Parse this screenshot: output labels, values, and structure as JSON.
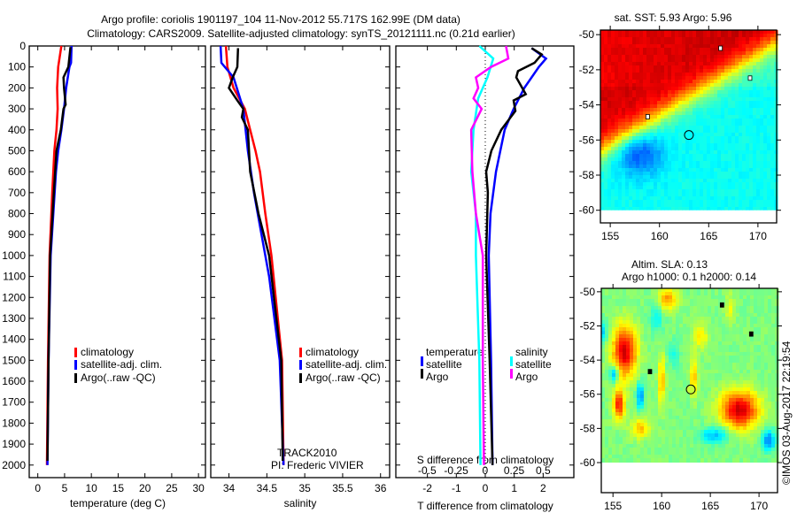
{
  "title_line1": "Argo profile: coriolis 1901197_104 11-Nov-2012 55.717S 162.99E (DM data)",
  "title_line2": "Climatology: CARS2009. Satellite-adjusted climatology: synTS_20121111.nc (0.21d earlier)",
  "colors": {
    "climatology": "#ff0000",
    "satellite": "#0000ff",
    "argo": "#000000",
    "sal_satellite": "#00ffff",
    "sal_argo": "#ff00ff"
  },
  "chart_data": [
    {
      "type": "line",
      "xlabel": "temperature (deg C)",
      "ylabel": "",
      "xlim": [
        -1.6,
        31.3
      ],
      "ylim": [
        0,
        2060
      ],
      "y_reversed": true,
      "xticks": [
        0,
        5,
        10,
        15,
        20,
        25,
        30
      ],
      "yticks": [
        0,
        100,
        200,
        300,
        400,
        500,
        600,
        700,
        800,
        900,
        1000,
        1100,
        1200,
        1300,
        1400,
        1500,
        1600,
        1700,
        1800,
        1900,
        2000
      ],
      "legend": [
        "climatology",
        "satellite-adj. clim.",
        "Argo(..raw -QC)"
      ],
      "series": [
        {
          "name": "climatology",
          "color_key": "climatology",
          "depth": [
            0,
            100,
            200,
            300,
            400,
            500,
            700,
            1000,
            1500,
            2000
          ],
          "values": [
            4.4,
            3.8,
            3.6,
            3.7,
            3.5,
            3.1,
            2.7,
            2.2,
            1.9,
            1.7
          ]
        },
        {
          "name": "satellite-adj. clim.",
          "color_key": "satellite",
          "depth": [
            0,
            80,
            100,
            200,
            300,
            400,
            500,
            600,
            800,
            1000,
            1500,
            2000
          ],
          "values": [
            6.3,
            6.2,
            5.9,
            5.3,
            4.9,
            4.4,
            3.8,
            3.4,
            2.9,
            2.4,
            2.0,
            1.8
          ]
        },
        {
          "name": "Argo(..raw -QC)",
          "color_key": "argo",
          "depth": [
            5,
            100,
            150,
            200,
            280,
            300,
            400,
            500,
            700,
            1000,
            1500,
            1980
          ],
          "values": [
            6.1,
            5.7,
            4.8,
            4.9,
            5.2,
            4.8,
            4.3,
            3.5,
            3.0,
            2.3,
            2.0,
            1.8
          ]
        }
      ]
    },
    {
      "type": "line",
      "xlabel": "salinity",
      "xlim": [
        33.76,
        36.12
      ],
      "ylim": [
        0,
        2060
      ],
      "y_reversed": true,
      "xticks": [
        34,
        34.5,
        35,
        35.5,
        36
      ],
      "legend": [
        "climatology",
        "satellite-adj. clim.",
        "Argo(..raw -QC)"
      ],
      "annotation_1": "TRACK2010",
      "annotation_2": "PI: Frederic VIVIER",
      "series": [
        {
          "name": "climatology",
          "color_key": "climatology",
          "depth": [
            0,
            100,
            200,
            300,
            400,
            500,
            600,
            800,
            1000,
            1500,
            2000
          ],
          "values": [
            33.96,
            33.98,
            34.06,
            34.21,
            34.28,
            34.35,
            34.41,
            34.48,
            34.56,
            34.7,
            34.72
          ]
        },
        {
          "name": "satellite-adj. clim.",
          "color_key": "satellite",
          "depth": [
            0,
            80,
            150,
            300,
            500,
            700,
            900,
            1100,
            1500,
            2000
          ],
          "values": [
            33.89,
            33.9,
            34.06,
            34.19,
            34.25,
            34.33,
            34.43,
            34.53,
            34.67,
            34.72
          ]
        },
        {
          "name": "Argo(..raw -QC)",
          "color_key": "argo",
          "depth": [
            10,
            100,
            150,
            200,
            260,
            300,
            340,
            400,
            600,
            800,
            1000,
            1500,
            1980
          ],
          "values": [
            34.12,
            34.11,
            34.05,
            34.0,
            34.11,
            34.19,
            34.17,
            34.25,
            34.28,
            34.39,
            34.53,
            34.69,
            34.71
          ]
        }
      ]
    },
    {
      "type": "line",
      "xlabel": "T difference from climatology",
      "xlabel_secondary": "S difference from climatology",
      "xlim": [
        -3.09,
        3.06
      ],
      "xlim_secondary": [
        -0.77,
        0.765
      ],
      "ylim": [
        0,
        2060
      ],
      "y_reversed": true,
      "xticks": [
        -2,
        -1,
        0,
        1,
        2
      ],
      "xticks_secondary": [
        "-0.5",
        "-0.25",
        "0",
        "0.25",
        "0.5"
      ],
      "legend_temperature_title": "temperature",
      "legend_salinity_title": "salinity",
      "legend_satellite": "satellite",
      "legend_argo": "Argo",
      "series": [
        {
          "name": "T satellite",
          "axis": "T",
          "color_key": "satellite",
          "depth": [
            10,
            60,
            100,
            200,
            300,
            400,
            500,
            600,
            800,
            1000,
            1500,
            2000
          ],
          "values": [
            1.6,
            2.1,
            1.85,
            1.35,
            0.98,
            0.67,
            0.52,
            0.37,
            0.18,
            0.12,
            0.2,
            0.25
          ]
        },
        {
          "name": "T Argo",
          "axis": "T",
          "color_key": "argo",
          "depth": [
            10,
            40,
            80,
            120,
            150,
            230,
            260,
            310,
            400,
            500,
            600,
            700,
            1000,
            1500,
            2000
          ],
          "values": [
            1.6,
            1.95,
            1.7,
            1.13,
            1.07,
            1.4,
            0.98,
            1.04,
            0.55,
            0.21,
            0.03,
            0.09,
            0.03,
            0.15,
            0.25
          ]
        },
        {
          "name": "S satellite",
          "axis": "S",
          "color_key": "sal_satellite",
          "depth": [
            0,
            60,
            150,
            250,
            400,
            600,
            800,
            1000,
            1500,
            2000
          ],
          "values": [
            -0.05,
            0.07,
            0.02,
            -0.06,
            -0.1,
            -0.12,
            -0.08,
            -0.08,
            -0.05,
            -0.04
          ]
        },
        {
          "name": "S Argo",
          "axis": "S",
          "color_key": "sal_argo",
          "depth": [
            0,
            60,
            100,
            150,
            200,
            250,
            300,
            400,
            600,
            800,
            1000,
            1500,
            2000
          ],
          "values": [
            0.18,
            0.2,
            0.05,
            -0.08,
            -0.06,
            -0.1,
            -0.03,
            -0.12,
            -0.11,
            -0.08,
            -0.02,
            -0.02,
            -0.01
          ]
        }
      ]
    },
    {
      "type": "heatmap",
      "title": "sat. SST: 5.93 Argo: 5.96",
      "xlim": [
        154.0,
        171.9
      ],
      "ylim": [
        -60.72,
        -49.74
      ],
      "data_lat_min": -60,
      "xticks": [
        155,
        160,
        165,
        170
      ],
      "yticks": [
        -50,
        -52,
        -54,
        -56,
        -58,
        -60
      ],
      "float": {
        "lon": 162.99,
        "lat": -55.717
      }
    },
    {
      "type": "heatmap",
      "title": "Altim. SLA: 0.13",
      "subtitle": "Argo h1000: 0.1 h2000: 0.14",
      "xlim": [
        153.8,
        171.9
      ],
      "ylim": [
        -61.76,
        -49.8
      ],
      "data_lat_min": -60,
      "xticks": [
        155,
        160,
        165,
        170
      ],
      "yticks": [
        -50,
        -52,
        -54,
        -56,
        -58,
        -60
      ],
      "float": {
        "lon": 162.99,
        "lat": -55.717
      }
    }
  ],
  "credit": "©IMOS 03-Aug-2017 22:19:54"
}
